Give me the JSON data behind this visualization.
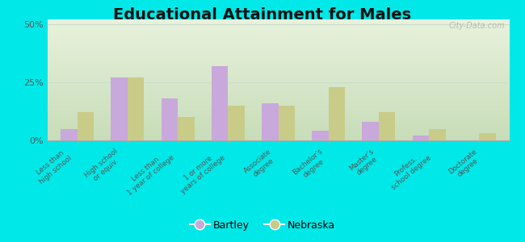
{
  "title": "Educational Attainment for Males",
  "categories": [
    "Less than\nhigh school",
    "High school\nor equiv.",
    "Less than\n1 year of college",
    "1 or more\nyears of college",
    "Associate\ndegree",
    "Bachelor’s\ndegree",
    "Master’s\ndegree",
    "Profess.\nschool degree",
    "Doctorate\ndegree"
  ],
  "bartley": [
    5.0,
    27.0,
    18.0,
    32.0,
    16.0,
    4.0,
    8.0,
    2.0,
    0.0
  ],
  "nebraska": [
    12.0,
    27.0,
    10.0,
    15.0,
    15.0,
    23.0,
    12.0,
    5.0,
    3.0
  ],
  "bartley_color": "#c9a8dc",
  "nebraska_color": "#c8cc88",
  "background_outer": "#00e8e8",
  "yticks": [
    0,
    25,
    50
  ],
  "ylim": [
    0,
    52
  ],
  "title_fontsize": 14,
  "watermark": "City-Data.com",
  "grid_color": "#ccddcc",
  "label_color": "#555555"
}
